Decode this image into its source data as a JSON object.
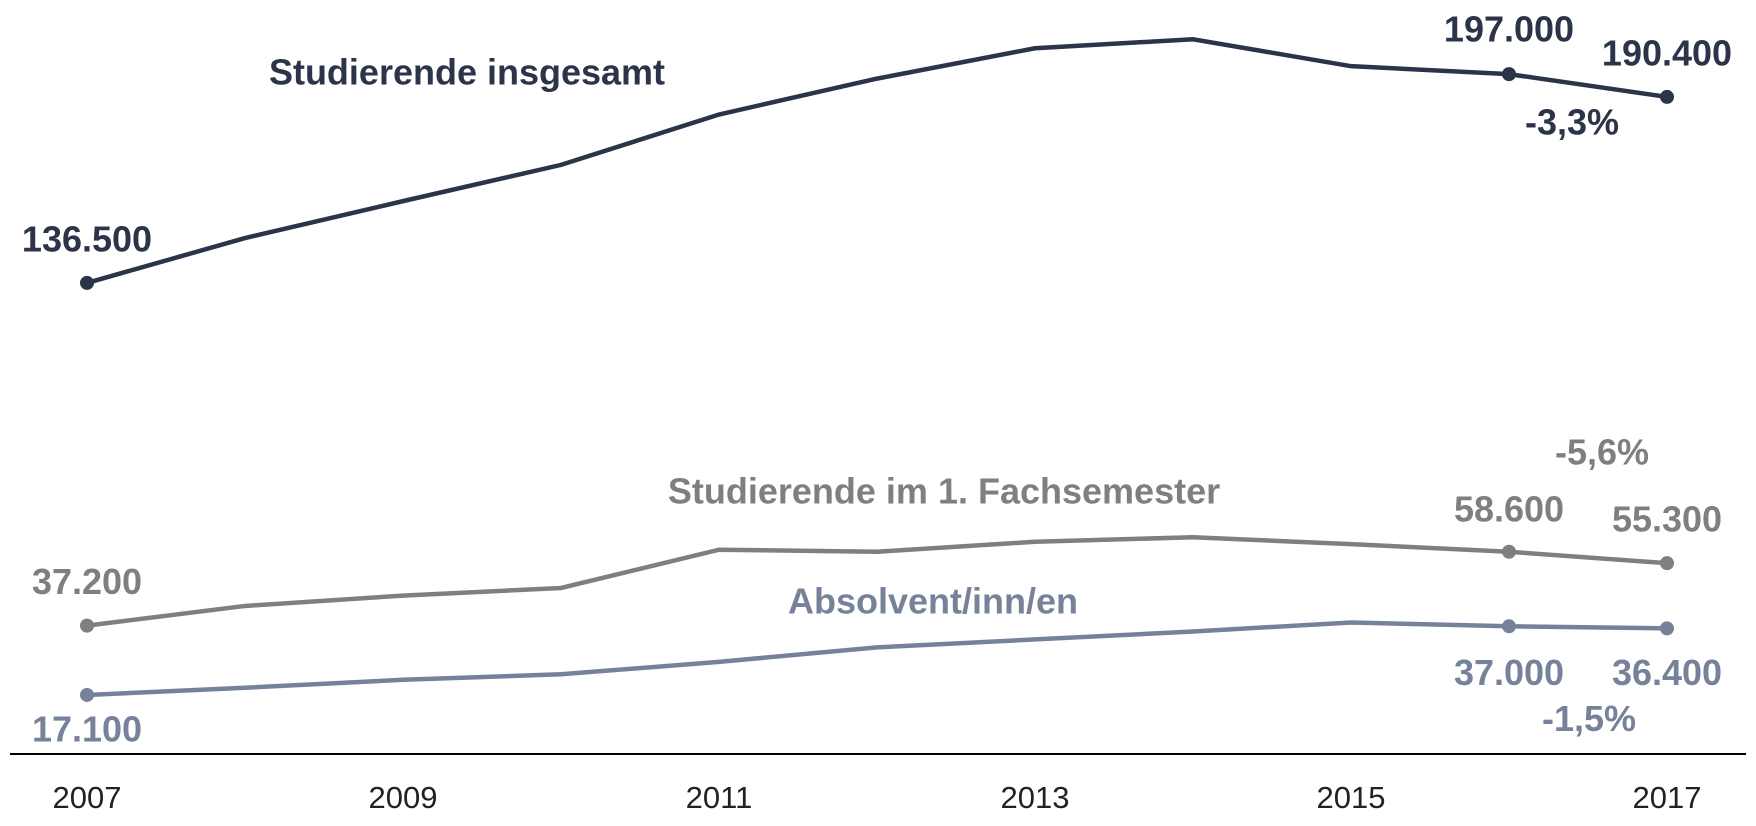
{
  "chart_data": {
    "type": "line",
    "x": [
      2007,
      2008,
      2009,
      2010,
      2011,
      2012,
      2013,
      2014,
      2015,
      2016,
      2017
    ],
    "xlim": [
      2007,
      2017
    ],
    "xticks": [
      2007,
      2009,
      2011,
      2013,
      2015,
      2017
    ],
    "ylim": [
      0,
      215000
    ],
    "series": [
      {
        "name": "Studierende insgesamt",
        "color": "#2b3449",
        "values": [
          136500,
          149500,
          160200,
          170700,
          185300,
          195700,
          204500,
          207100,
          199300,
          197000,
          190400
        ],
        "value_labels": [
          "136.500",
          null,
          null,
          null,
          null,
          null,
          null,
          null,
          null,
          "197.000",
          "190.400"
        ],
        "change": "-3,3%"
      },
      {
        "name": "Studierende im 1. Fachsemester",
        "color": "#7f7f7f",
        "values": [
          37200,
          42900,
          45900,
          48100,
          59200,
          58600,
          61500,
          62800,
          60800,
          58600,
          55300
        ],
        "value_labels": [
          "37.200",
          null,
          null,
          null,
          null,
          null,
          null,
          null,
          null,
          "58.600",
          "55.300"
        ],
        "change": "-5,6%"
      },
      {
        "name": "Absolvent/inn/en",
        "color": "#76829a",
        "values": [
          17100,
          19200,
          21500,
          23100,
          26700,
          30900,
          33200,
          35500,
          38100,
          37000,
          36400
        ],
        "value_labels": [
          "17.100",
          null,
          null,
          null,
          null,
          null,
          null,
          null,
          null,
          "37.000",
          "36.400"
        ],
        "change": "-1,5%"
      }
    ]
  }
}
